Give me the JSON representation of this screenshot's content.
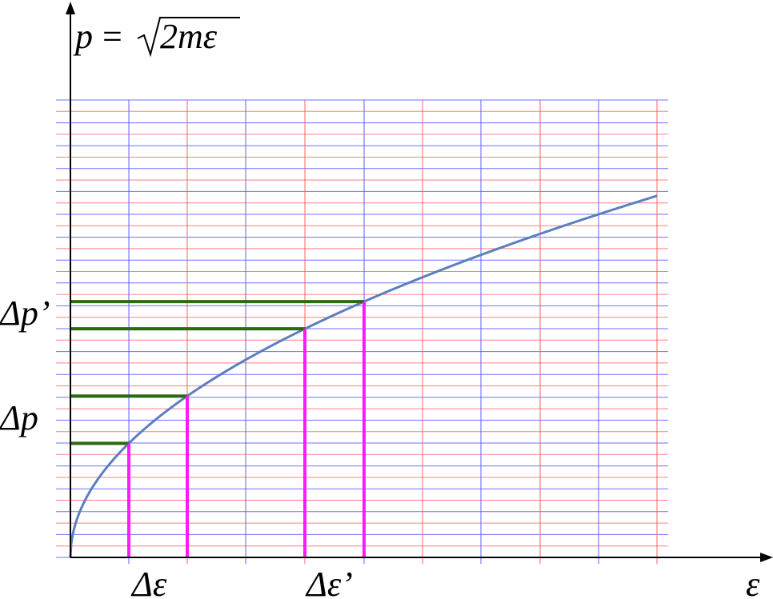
{
  "formula": {
    "lhs": "p",
    "eq": "=",
    "radicand": "2mε"
  },
  "labels": {
    "delta_p_prime": "Δp’",
    "delta_p": "Δp",
    "delta_e": "Δε",
    "delta_e_prime": "Δε’",
    "x_axis": "ε"
  }
}
